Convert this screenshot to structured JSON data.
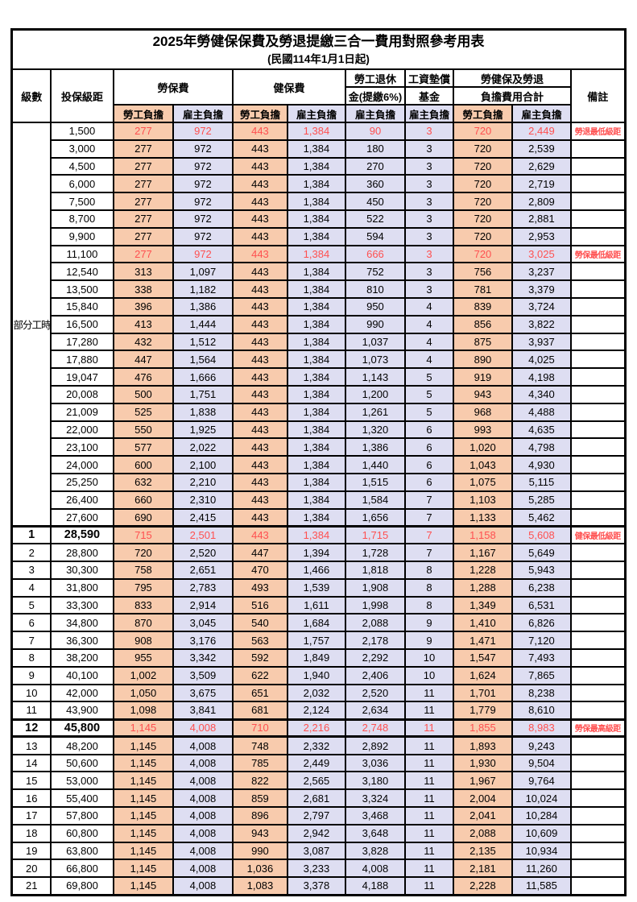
{
  "title": "2025年勞健保保費及勞退提繳三合一費用對照參考用表",
  "subtitle": "(民國114年1月1日起)",
  "colors": {
    "employee_bg": "#F8CBAD",
    "employer_bg": "#DEDEF2",
    "highlight_red": "#FF5050",
    "border": "#000000"
  },
  "header": {
    "level": "級數",
    "bracket": "投保級距",
    "labor": "勞保費",
    "health": "健保費",
    "pension_line1": "勞工退休",
    "pension_line2": "金(提繳6%)",
    "wage_fund_line1": "工資墊償",
    "wage_fund_line2": "基金",
    "total_line1": "勞健保及勞退",
    "total_line2": "負擔費用合計",
    "remark": "備註",
    "employee_label": "勞工負擔",
    "employer_label": "雇主負擔"
  },
  "part_time_label": "部分工時",
  "part_time_rowspan": 23,
  "value_column_kinds": [
    "emp",
    "er",
    "emp",
    "er",
    "er",
    "er",
    "emp",
    "er"
  ],
  "value_column_names": [
    "labor-employee",
    "labor-employer",
    "health-employee",
    "health-employer",
    "pension-employer",
    "wage-fund-employer",
    "total-employee",
    "total-employer"
  ],
  "rows": [
    {
      "level": "",
      "bracket": "1,500",
      "values": [
        "277",
        "972",
        "443",
        "1,384",
        "90",
        "3",
        "720",
        "2,449"
      ],
      "remark": "勞退最低級距",
      "red": true
    },
    {
      "level": "",
      "bracket": "3,000",
      "values": [
        "277",
        "972",
        "443",
        "1,384",
        "180",
        "3",
        "720",
        "2,539"
      ],
      "remark": ""
    },
    {
      "level": "",
      "bracket": "4,500",
      "values": [
        "277",
        "972",
        "443",
        "1,384",
        "270",
        "3",
        "720",
        "2,629"
      ],
      "remark": ""
    },
    {
      "level": "",
      "bracket": "6,000",
      "values": [
        "277",
        "972",
        "443",
        "1,384",
        "360",
        "3",
        "720",
        "2,719"
      ],
      "remark": ""
    },
    {
      "level": "",
      "bracket": "7,500",
      "values": [
        "277",
        "972",
        "443",
        "1,384",
        "450",
        "3",
        "720",
        "2,809"
      ],
      "remark": ""
    },
    {
      "level": "",
      "bracket": "8,700",
      "values": [
        "277",
        "972",
        "443",
        "1,384",
        "522",
        "3",
        "720",
        "2,881"
      ],
      "remark": ""
    },
    {
      "level": "",
      "bracket": "9,900",
      "values": [
        "277",
        "972",
        "443",
        "1,384",
        "594",
        "3",
        "720",
        "2,953"
      ],
      "remark": ""
    },
    {
      "level": "",
      "bracket": "11,100",
      "values": [
        "277",
        "972",
        "443",
        "1,384",
        "666",
        "3",
        "720",
        "3,025"
      ],
      "remark": "勞保最低級距",
      "red": true
    },
    {
      "level": "",
      "bracket": "12,540",
      "values": [
        "313",
        "1,097",
        "443",
        "1,384",
        "752",
        "3",
        "756",
        "3,237"
      ],
      "remark": ""
    },
    {
      "level": "",
      "bracket": "13,500",
      "values": [
        "338",
        "1,182",
        "443",
        "1,384",
        "810",
        "3",
        "781",
        "3,379"
      ],
      "remark": ""
    },
    {
      "level": "",
      "bracket": "15,840",
      "values": [
        "396",
        "1,386",
        "443",
        "1,384",
        "950",
        "4",
        "839",
        "3,724"
      ],
      "remark": ""
    },
    {
      "level": "",
      "bracket": "16,500",
      "values": [
        "413",
        "1,444",
        "443",
        "1,384",
        "990",
        "4",
        "856",
        "3,822"
      ],
      "remark": ""
    },
    {
      "level": "",
      "bracket": "17,280",
      "values": [
        "432",
        "1,512",
        "443",
        "1,384",
        "1,037",
        "4",
        "875",
        "3,937"
      ],
      "remark": ""
    },
    {
      "level": "",
      "bracket": "17,880",
      "values": [
        "447",
        "1,564",
        "443",
        "1,384",
        "1,073",
        "4",
        "890",
        "4,025"
      ],
      "remark": ""
    },
    {
      "level": "",
      "bracket": "19,047",
      "values": [
        "476",
        "1,666",
        "443",
        "1,384",
        "1,143",
        "5",
        "919",
        "4,198"
      ],
      "remark": ""
    },
    {
      "level": "",
      "bracket": "20,008",
      "values": [
        "500",
        "1,751",
        "443",
        "1,384",
        "1,200",
        "5",
        "943",
        "4,340"
      ],
      "remark": ""
    },
    {
      "level": "",
      "bracket": "21,009",
      "values": [
        "525",
        "1,838",
        "443",
        "1,384",
        "1,261",
        "5",
        "968",
        "4,488"
      ],
      "remark": ""
    },
    {
      "level": "",
      "bracket": "22,000",
      "values": [
        "550",
        "1,925",
        "443",
        "1,384",
        "1,320",
        "6",
        "993",
        "4,635"
      ],
      "remark": ""
    },
    {
      "level": "",
      "bracket": "23,100",
      "values": [
        "577",
        "2,022",
        "443",
        "1,384",
        "1,386",
        "6",
        "1,020",
        "4,798"
      ],
      "remark": ""
    },
    {
      "level": "",
      "bracket": "24,000",
      "values": [
        "600",
        "2,100",
        "443",
        "1,384",
        "1,440",
        "6",
        "1,043",
        "4,930"
      ],
      "remark": ""
    },
    {
      "level": "",
      "bracket": "25,250",
      "values": [
        "632",
        "2,210",
        "443",
        "1,384",
        "1,515",
        "6",
        "1,075",
        "5,115"
      ],
      "remark": ""
    },
    {
      "level": "",
      "bracket": "26,400",
      "values": [
        "660",
        "2,310",
        "443",
        "1,384",
        "1,584",
        "7",
        "1,103",
        "5,285"
      ],
      "remark": ""
    },
    {
      "level": "",
      "bracket": "27,600",
      "values": [
        "690",
        "2,415",
        "443",
        "1,384",
        "1,656",
        "7",
        "1,133",
        "5,462"
      ],
      "remark": ""
    },
    {
      "level": "1",
      "bracket": "28,590",
      "values": [
        "715",
        "2,501",
        "443",
        "1,384",
        "1,715",
        "7",
        "1,158",
        "5,608"
      ],
      "remark": "健保最低級距",
      "red": true,
      "emph": true,
      "thick_top": true
    },
    {
      "level": "2",
      "bracket": "28,800",
      "values": [
        "720",
        "2,520",
        "447",
        "1,394",
        "1,728",
        "7",
        "1,167",
        "5,649"
      ],
      "remark": ""
    },
    {
      "level": "3",
      "bracket": "30,300",
      "values": [
        "758",
        "2,651",
        "470",
        "1,466",
        "1,818",
        "8",
        "1,228",
        "5,943"
      ],
      "remark": ""
    },
    {
      "level": "4",
      "bracket": "31,800",
      "values": [
        "795",
        "2,783",
        "493",
        "1,539",
        "1,908",
        "8",
        "1,288",
        "6,238"
      ],
      "remark": ""
    },
    {
      "level": "5",
      "bracket": "33,300",
      "values": [
        "833",
        "2,914",
        "516",
        "1,611",
        "1,998",
        "8",
        "1,349",
        "6,531"
      ],
      "remark": ""
    },
    {
      "level": "6",
      "bracket": "34,800",
      "values": [
        "870",
        "3,045",
        "540",
        "1,684",
        "2,088",
        "9",
        "1,410",
        "6,826"
      ],
      "remark": ""
    },
    {
      "level": "7",
      "bracket": "36,300",
      "values": [
        "908",
        "3,176",
        "563",
        "1,757",
        "2,178",
        "9",
        "1,471",
        "7,120"
      ],
      "remark": ""
    },
    {
      "level": "8",
      "bracket": "38,200",
      "values": [
        "955",
        "3,342",
        "592",
        "1,849",
        "2,292",
        "10",
        "1,547",
        "7,493"
      ],
      "remark": ""
    },
    {
      "level": "9",
      "bracket": "40,100",
      "values": [
        "1,002",
        "3,509",
        "622",
        "1,940",
        "2,406",
        "10",
        "1,624",
        "7,865"
      ],
      "remark": ""
    },
    {
      "level": "10",
      "bracket": "42,000",
      "values": [
        "1,050",
        "3,675",
        "651",
        "2,032",
        "2,520",
        "11",
        "1,701",
        "8,238"
      ],
      "remark": ""
    },
    {
      "level": "11",
      "bracket": "43,900",
      "values": [
        "1,098",
        "3,841",
        "681",
        "2,124",
        "2,634",
        "11",
        "1,779",
        "8,610"
      ],
      "remark": ""
    },
    {
      "level": "12",
      "bracket": "45,800",
      "values": [
        "1,145",
        "4,008",
        "710",
        "2,216",
        "2,748",
        "11",
        "1,855",
        "8,983"
      ],
      "remark": "勞保最高級距",
      "red": true,
      "emph": true,
      "thick_top": true,
      "thick_bottom": true
    },
    {
      "level": "13",
      "bracket": "48,200",
      "values": [
        "1,145",
        "4,008",
        "748",
        "2,332",
        "2,892",
        "11",
        "1,893",
        "9,243"
      ],
      "remark": ""
    },
    {
      "level": "14",
      "bracket": "50,600",
      "values": [
        "1,145",
        "4,008",
        "785",
        "2,449",
        "3,036",
        "11",
        "1,930",
        "9,504"
      ],
      "remark": ""
    },
    {
      "level": "15",
      "bracket": "53,000",
      "values": [
        "1,145",
        "4,008",
        "822",
        "2,565",
        "3,180",
        "11",
        "1,967",
        "9,764"
      ],
      "remark": ""
    },
    {
      "level": "16",
      "bracket": "55,400",
      "values": [
        "1,145",
        "4,008",
        "859",
        "2,681",
        "3,324",
        "11",
        "2,004",
        "10,024"
      ],
      "remark": ""
    },
    {
      "level": "17",
      "bracket": "57,800",
      "values": [
        "1,145",
        "4,008",
        "896",
        "2,797",
        "3,468",
        "11",
        "2,041",
        "10,284"
      ],
      "remark": ""
    },
    {
      "level": "18",
      "bracket": "60,800",
      "values": [
        "1,145",
        "4,008",
        "943",
        "2,942",
        "3,648",
        "11",
        "2,088",
        "10,609"
      ],
      "remark": ""
    },
    {
      "level": "19",
      "bracket": "63,800",
      "values": [
        "1,145",
        "4,008",
        "990",
        "3,087",
        "3,828",
        "11",
        "2,135",
        "10,934"
      ],
      "remark": ""
    },
    {
      "level": "20",
      "bracket": "66,800",
      "values": [
        "1,145",
        "4,008",
        "1,036",
        "3,233",
        "4,008",
        "11",
        "2,181",
        "11,260"
      ],
      "remark": ""
    },
    {
      "level": "21",
      "bracket": "69,800",
      "values": [
        "1,145",
        "4,008",
        "1,083",
        "3,378",
        "4,188",
        "11",
        "2,228",
        "11,585"
      ],
      "remark": ""
    }
  ]
}
